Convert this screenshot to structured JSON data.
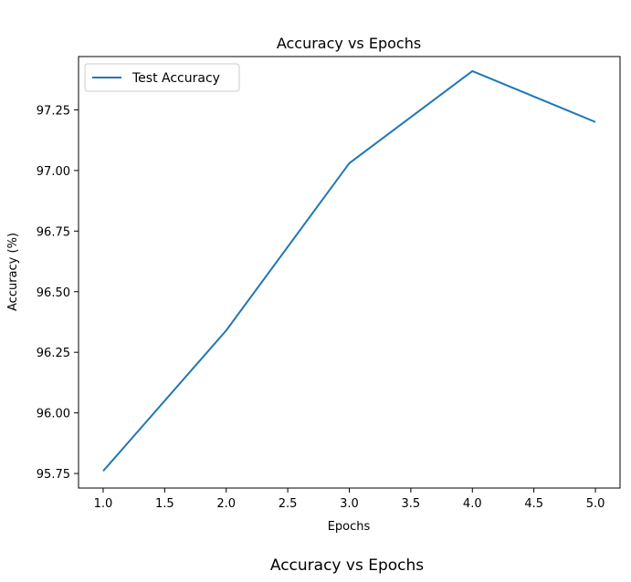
{
  "chart_data": [
    {
      "type": "line",
      "title": "Accuracy vs Epochs",
      "xlabel": "Epochs",
      "ylabel": "Accuracy (%)",
      "xlim": [
        0.8,
        5.2
      ],
      "ylim": [
        95.69,
        97.47
      ],
      "xticks": [
        1.0,
        1.5,
        2.0,
        2.5,
        3.0,
        3.5,
        4.0,
        4.5,
        5.0
      ],
      "xtick_labels": [
        "1.0",
        "1.5",
        "2.0",
        "2.5",
        "3.0",
        "3.5",
        "4.0",
        "4.5",
        "5.0"
      ],
      "yticks": [
        95.75,
        96.0,
        96.25,
        96.5,
        96.75,
        97.0,
        97.25
      ],
      "ytick_labels": [
        "95.75",
        "96.00",
        "96.25",
        "96.50",
        "96.75",
        "97.00",
        "97.25"
      ],
      "grid": false,
      "legend_position": "top-left",
      "x": [
        1,
        2,
        3,
        4,
        5
      ],
      "series": [
        {
          "name": "Test Accuracy",
          "color": "#1f77b4",
          "values": [
            95.76,
            96.34,
            97.03,
            97.41,
            97.2
          ]
        }
      ]
    },
    {
      "type": "line",
      "title": "Accuracy vs Epochs",
      "note_visible_only": "title"
    }
  ]
}
